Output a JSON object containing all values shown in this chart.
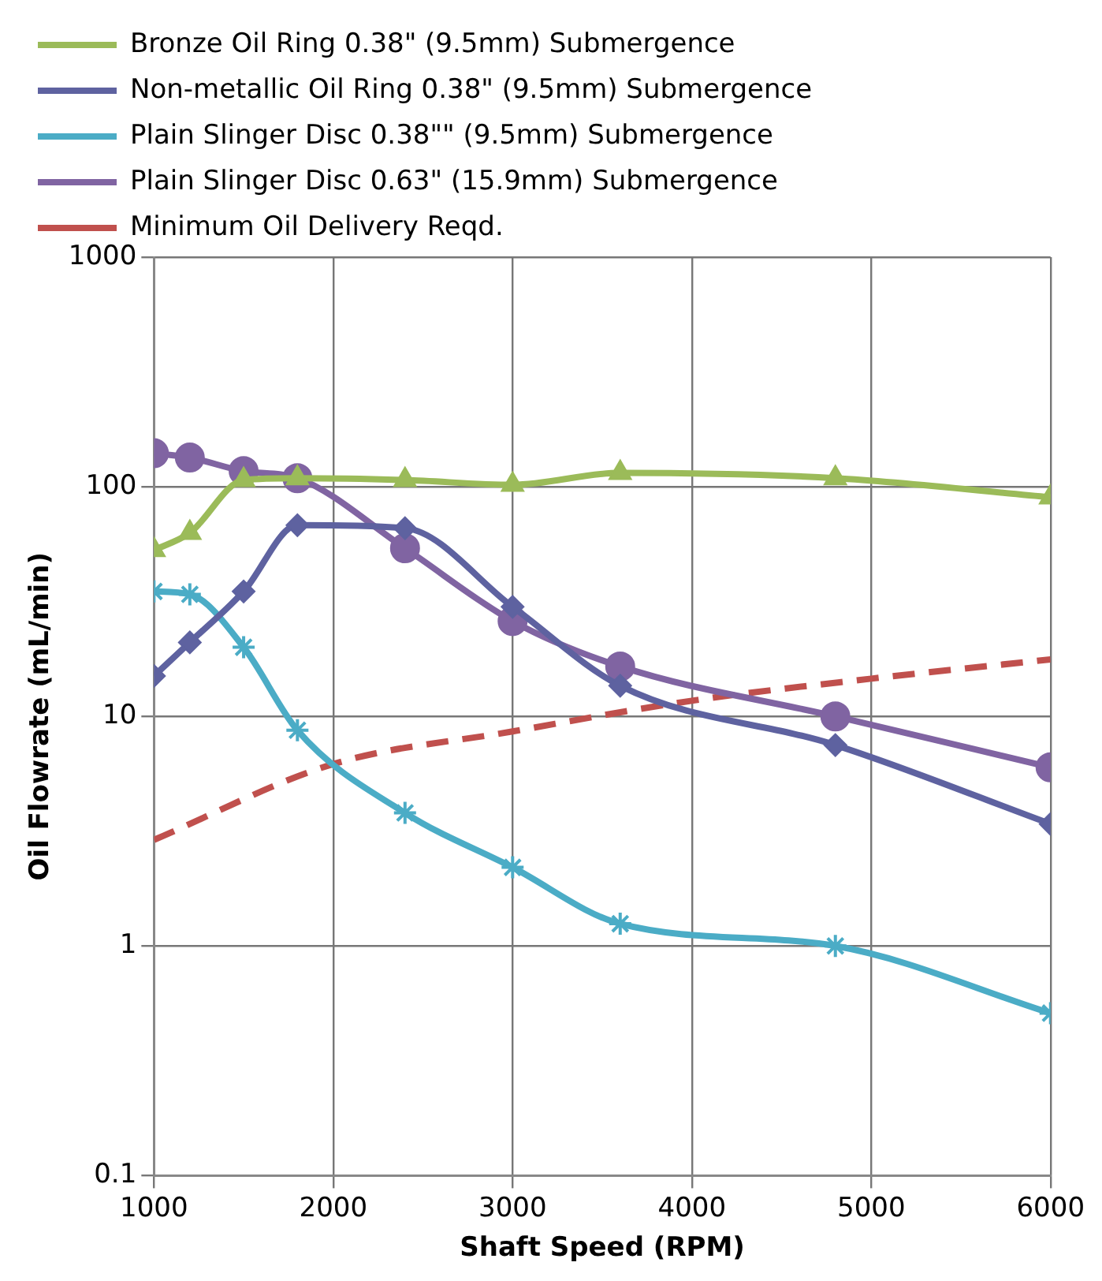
{
  "chart_data": {
    "type": "line",
    "xlabel": "Shaft Speed (RPM)",
    "ylabel": "Oil Flowrate (mL/min)",
    "log": "y",
    "grid": true,
    "legend": "top",
    "xlim": [
      1000,
      6000
    ],
    "xticks": [
      1000,
      2000,
      3000,
      4000,
      5000,
      6000
    ],
    "ylim": [
      0.1,
      1000
    ],
    "yticks": [
      0.1,
      1,
      10,
      100,
      1000
    ],
    "series": [
      {
        "name": "Bronze Oil Ring 0.38\" (9.5mm) Submergence",
        "color": "#9bbb59",
        "marker": "triangle",
        "line_style": "solid",
        "x": [
          1000,
          1200,
          1500,
          1800,
          2400,
          3000,
          3600,
          4800,
          6000
        ],
        "values": [
          53,
          63,
          107,
          109,
          107,
          102,
          115,
          109,
          90
        ]
      },
      {
        "name": "Non-metallic Oil Ring 0.38\" (9.5mm) Submergence",
        "color": "#5e62a0",
        "marker": "diamond",
        "line_style": "solid",
        "x": [
          1000,
          1200,
          1500,
          1800,
          2400,
          3000,
          3600,
          4800,
          6000
        ],
        "values": [
          15,
          21,
          35,
          68,
          66,
          30,
          13.6,
          7.5,
          3.4
        ]
      },
      {
        "name": "Plain Slinger Disc 0.38\"\" (9.5mm) Submergence",
        "color": "#4bacc6",
        "marker": "cross",
        "line_style": "solid",
        "x": [
          1000,
          1200,
          1500,
          1800,
          2400,
          3000,
          3600,
          4800,
          6000
        ],
        "values": [
          35,
          34,
          20,
          8.7,
          3.8,
          2.2,
          1.25,
          1.0,
          0.51
        ]
      },
      {
        "name": "Plain Slinger Disc 0.63\" (15.9mm) Submergence",
        "color": "#8064a2",
        "marker": "circle",
        "line_style": "solid",
        "x": [
          1000,
          1200,
          1500,
          1800,
          2400,
          3000,
          3600,
          4800,
          6000
        ],
        "values": [
          140,
          134,
          117,
          109,
          54,
          26,
          16.5,
          10,
          6
        ]
      },
      {
        "name": "Minimum Oil Delivery Reqd.",
        "color": "#c0504d",
        "marker": "none",
        "line_style": "dashed",
        "x": [
          1000,
          2000,
          3000,
          4000,
          5000,
          6000
        ],
        "values": [
          2.9,
          6.2,
          8.6,
          11.7,
          14.6,
          17.7
        ]
      }
    ]
  }
}
